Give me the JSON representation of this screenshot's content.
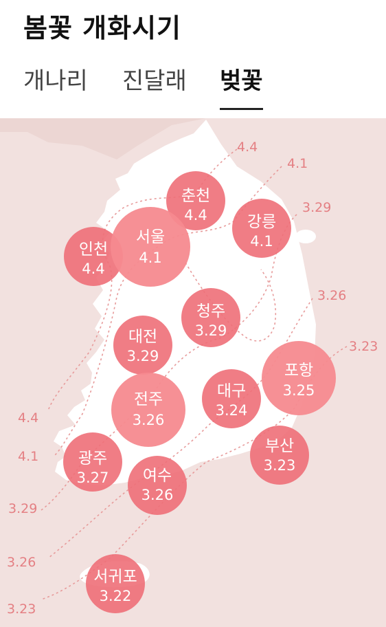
{
  "title": "봄꽃 개화시기",
  "tabs": [
    {
      "label": "개나리",
      "active": false
    },
    {
      "label": "진달래",
      "active": false
    },
    {
      "label": "벚꽃",
      "active": true
    }
  ],
  "colors": {
    "sea": "#f2e1df",
    "land": "#ffffff",
    "bubble": "#ee6f78",
    "bubble_light": "#f58a8f",
    "isoline": "#e79a9a",
    "label": "#e47f83"
  },
  "cities": [
    {
      "name": "춘천",
      "date": "4.4"
    },
    {
      "name": "강릉",
      "date": "4.1"
    },
    {
      "name": "서울",
      "date": "4.1"
    },
    {
      "name": "인천",
      "date": "4.4"
    },
    {
      "name": "청주",
      "date": "3.29"
    },
    {
      "name": "대전",
      "date": "3.29"
    },
    {
      "name": "포항",
      "date": "3.25"
    },
    {
      "name": "대구",
      "date": "3.24"
    },
    {
      "name": "전주",
      "date": "3.26"
    },
    {
      "name": "부산",
      "date": "3.23"
    },
    {
      "name": "광주",
      "date": "3.27"
    },
    {
      "name": "여수",
      "date": "3.26"
    },
    {
      "name": "서귀포",
      "date": "3.22"
    }
  ],
  "isolines": {
    "east": [
      "4.4",
      "4.1",
      "3.29",
      "3.26",
      "3.23"
    ],
    "west": [
      "4.4",
      "4.1",
      "3.29",
      "3.26",
      "3.23"
    ]
  }
}
